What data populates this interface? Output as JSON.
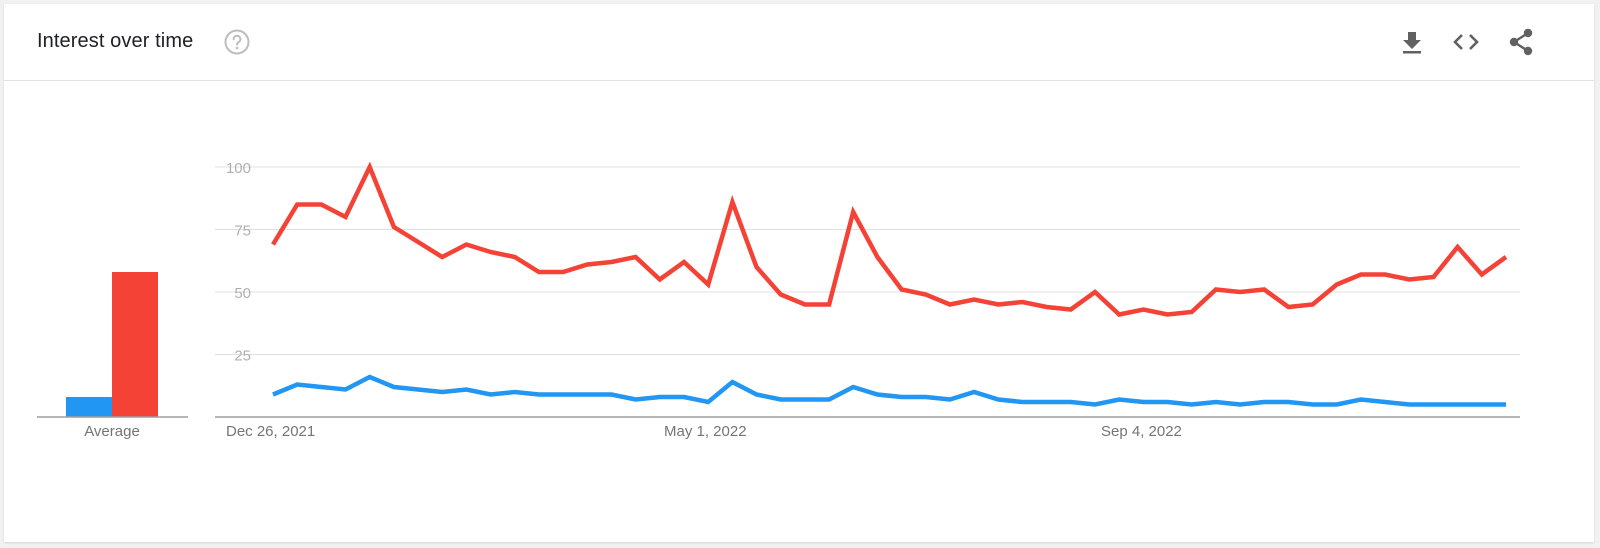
{
  "header": {
    "title": "Interest over time",
    "help_icon": "help-circle-icon",
    "tools": [
      {
        "name": "download-icon"
      },
      {
        "name": "embed-code-icon"
      },
      {
        "name": "share-icon"
      }
    ]
  },
  "colors": {
    "blue": "#2196f3",
    "red": "#f44336",
    "grid": "#e0e0e0",
    "axis": "#9e9e9e",
    "tick": "#b0b0b0"
  },
  "chart_data": {
    "type": "line",
    "title": "Interest over time",
    "ylim": [
      0,
      100
    ],
    "y_ticks": [
      "100",
      "75",
      "50",
      "25"
    ],
    "x_tick_labels": [
      "Dec 26, 2021",
      "May 1, 2022",
      "Sep 4, 2022"
    ],
    "grid": true,
    "average": {
      "label": "Average",
      "values": [
        8,
        58
      ]
    },
    "series": [
      {
        "color": "#2196f3",
        "values": [
          9,
          13,
          12,
          11,
          16,
          12,
          11,
          10,
          11,
          9,
          10,
          9,
          9,
          9,
          9,
          7,
          8,
          8,
          6,
          14,
          9,
          7,
          7,
          7,
          12,
          9,
          8,
          8,
          7,
          10,
          7,
          6,
          6,
          6,
          5,
          7,
          6,
          6,
          5,
          6,
          5,
          6,
          6,
          5,
          5,
          7,
          6,
          5,
          5,
          5,
          5,
          5
        ]
      },
      {
        "color": "#f44336",
        "values": [
          69,
          85,
          85,
          80,
          100,
          76,
          70,
          64,
          69,
          66,
          64,
          58,
          58,
          61,
          62,
          64,
          55,
          62,
          53,
          86,
          60,
          49,
          45,
          45,
          82,
          64,
          51,
          49,
          45,
          47,
          45,
          46,
          44,
          43,
          50,
          41,
          43,
          41,
          42,
          51,
          50,
          51,
          44,
          45,
          53,
          57,
          57,
          55,
          56,
          68,
          57,
          64
        ]
      }
    ]
  }
}
